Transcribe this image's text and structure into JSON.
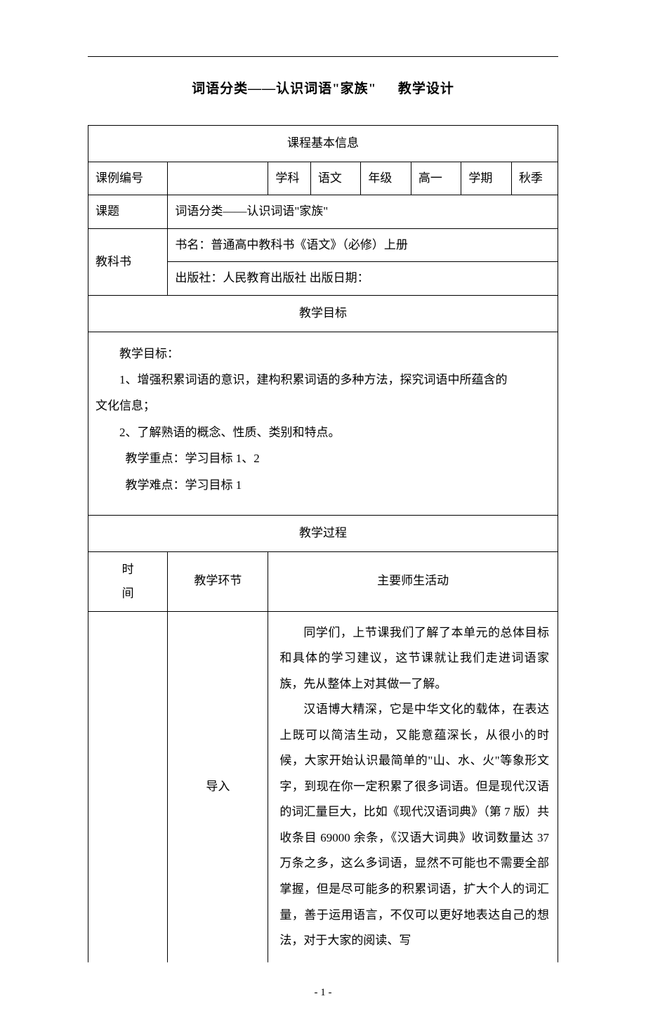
{
  "title": {
    "part1": "词语分类——认识词语\"家族\"",
    "part2": "教学设计"
  },
  "sections": {
    "basic_info": "课程基本信息",
    "teaching_goals": "教学目标",
    "teaching_process": "教学过程"
  },
  "info_table": {
    "row1": {
      "label1": "课例编号",
      "value1": "",
      "label2": "学科",
      "value2": "语文",
      "label3": "年级",
      "value3": "高一",
      "label4": "学期",
      "value4": "秋季"
    },
    "row2": {
      "label": "课题",
      "value": "词语分类——认识词语\"家族\""
    },
    "row3": {
      "label": "教科书",
      "line1": "书名：普通高中教科书《语文》（必修）上册",
      "line2": "出版社：人民教育出版社 出版日期："
    }
  },
  "goals": {
    "header": "教学目标：",
    "item1": "1、增强积累词语的意识，建构积累词语的多种方法，探究词语中所蕴含的",
    "item1_cont": "文化信息；",
    "item2": "2、了解熟语的概念、性质、类别和特点。",
    "focus": "教学重点：学习目标 1、2",
    "difficulty": "教学难点：学习目标 1"
  },
  "process_headers": {
    "time": "时间",
    "time_l1": "时",
    "time_l2": "间",
    "stage": "教学环节",
    "activity": "主要师生活动"
  },
  "process_row1": {
    "stage": "导入",
    "p1": "同学们，上节课我们了解了本单元的总体目标和具体的学习建议，这节课就让我们走进词语家族，先从整体上对其做一了解。",
    "p2": "汉语博大精深，它是中华文化的载体，在表达上既可以简洁生动，又能意蕴深长，从很小的时候，大家开始认识最简单的\"山、水、火\"等象形文字，到现在你一定积累了很多词语。但是现代汉语的词汇量巨大，比如《现代汉语词典》（第 7 版）共收条目 69000 余条，《汉语大词典》收词数量达 37 万条之多，这么多词语，显然不可能也不需要全部掌握，但是尽可能多的积累词语，扩大个人的词汇量，善于运用语言，不仅可以更好地表达自己的想法，对于大家的阅读、写"
  },
  "page_number": "- 1 -",
  "styling": {
    "body_width": 920,
    "body_height": 1302,
    "background_color": "#ffffff",
    "text_color": "#000000",
    "border_color": "#000000",
    "font_family": "SimSun",
    "title_fontsize": 19,
    "body_fontsize": 17,
    "pagenum_fontsize": 15,
    "line_height": 2.15
  }
}
